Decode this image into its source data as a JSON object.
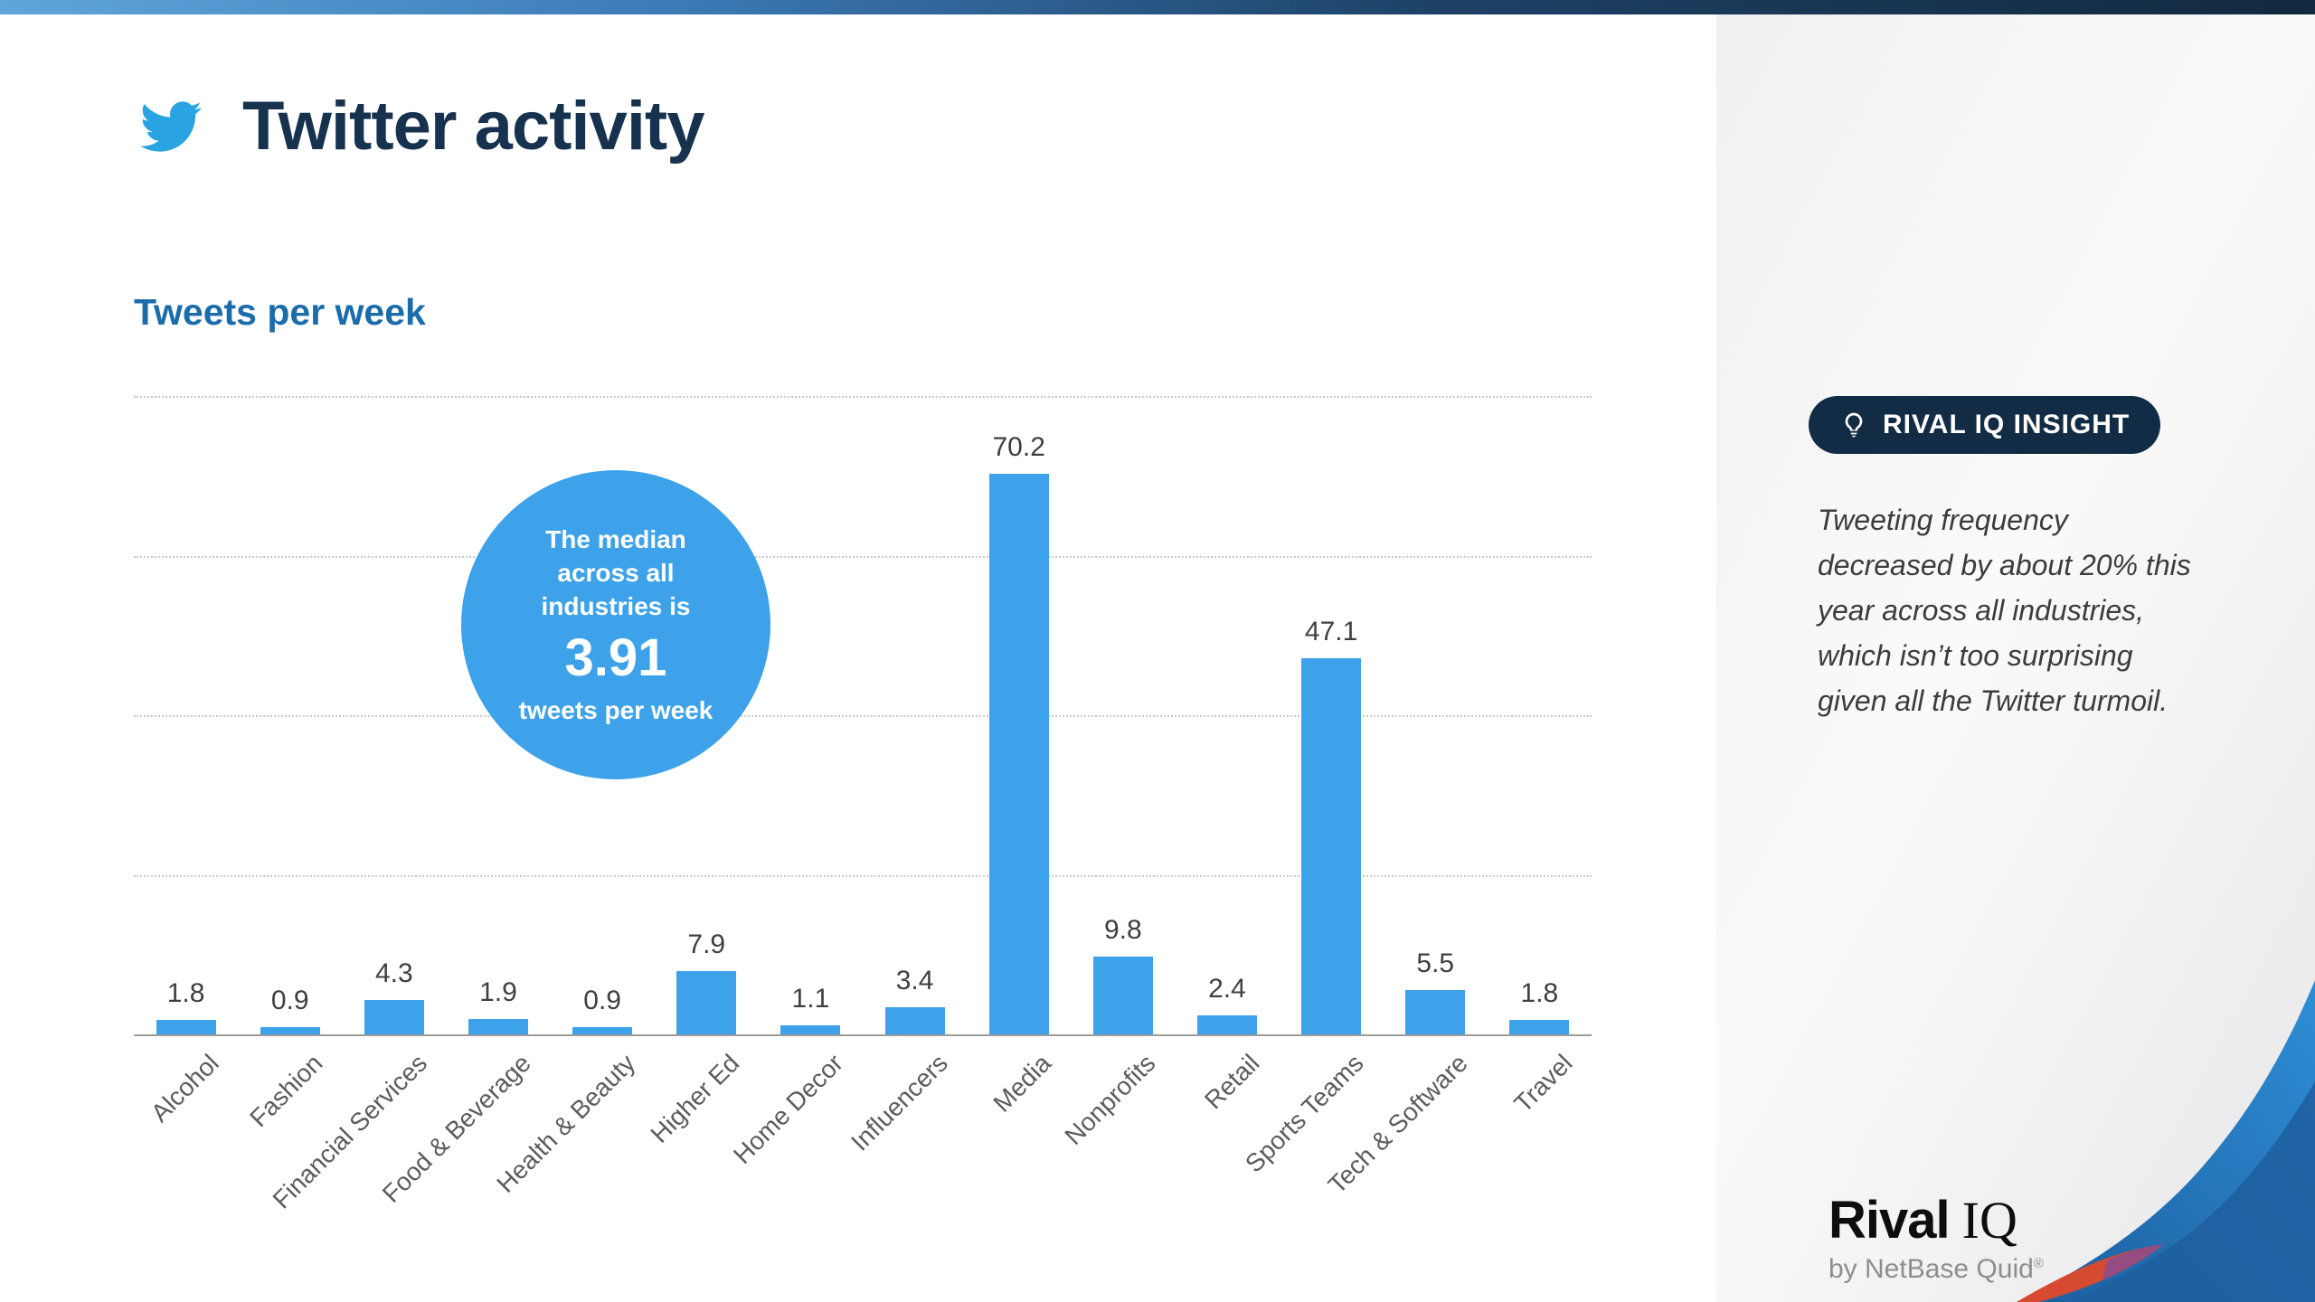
{
  "header": {
    "title": "Twitter activity",
    "title_color": "#16324f",
    "twitter_blue": "#2aa3e3"
  },
  "chart_data": {
    "type": "bar",
    "title": "Tweets per week",
    "categories": [
      "Alcohol",
      "Fashion",
      "Financial Services",
      "Food & Beverage",
      "Health & Beauty",
      "Higher Ed",
      "Home Decor",
      "Influencers",
      "Media",
      "Nonprofits",
      "Retail",
      "Sports Teams",
      "Tech & Software",
      "Travel"
    ],
    "values": [
      1.8,
      0.9,
      4.3,
      1.9,
      0.9,
      7.9,
      1.1,
      3.4,
      70.2,
      9.8,
      2.4,
      47.1,
      5.5,
      1.8
    ],
    "xlabel": "",
    "ylabel": "",
    "ylim": [
      0,
      80
    ],
    "gridlines": [
      20,
      40,
      60,
      80
    ],
    "grid": true,
    "legend": false,
    "bar_color": "#3da2e9",
    "value_label_color": "#3f3f3f"
  },
  "median_callout": {
    "intro_lines": [
      "The median",
      "across all",
      "industries is"
    ],
    "value": "3.91",
    "outro": "tweets per week",
    "bg_color": "#3da2e9"
  },
  "insight_panel": {
    "badge_label": "RIVAL IQ INSIGHT",
    "badge_color": "#132c45",
    "text": "Tweeting frequency decreased by about 20% this year across all industries, which isn’t too surprising given all the Twitter turmoil."
  },
  "footer": {
    "logo_rival": "Rival",
    "logo_iq": "IQ",
    "byline": "by NetBase Quid",
    "reg": "®",
    "wave_blue": "#2b7fc6",
    "wave_dark_blue": "#1f5e9e",
    "wave_red": "#d64a31",
    "wave_purple": "#8a4d8f"
  }
}
